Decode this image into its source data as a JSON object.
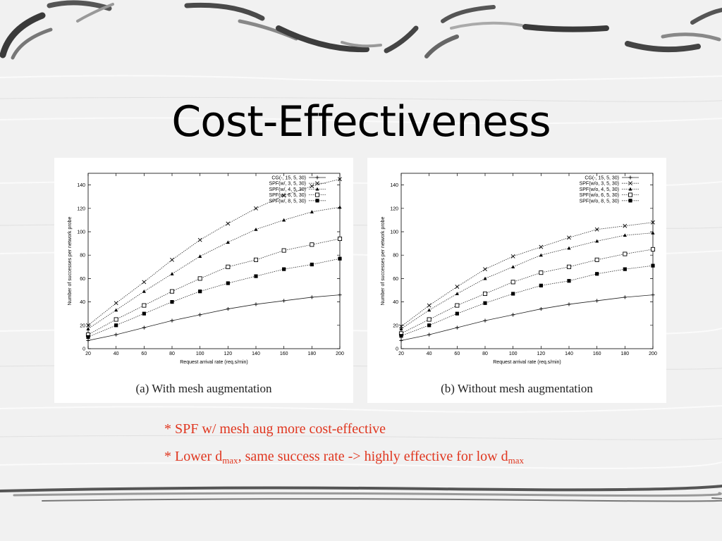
{
  "slide": {
    "title": "Cost-Effectiveness",
    "bullet1": "* SPF w/ mesh aug more cost-effective",
    "bullet2": {
      "prefix": "* Lower d",
      "sub1": "max",
      "middle": ", same success rate -> highly effective for low d",
      "sub2": "max"
    }
  },
  "colors": {
    "title": "#000000",
    "bullet": "#e0361f",
    "panel": "#ffffff"
  },
  "chart_data": [
    {
      "type": "line",
      "caption": "(a) With mesh augmentation",
      "xlabel": "Request arrival rate (req.s/min)",
      "ylabel": "Number of successes per network probe",
      "xlim": [
        20,
        200
      ],
      "ylim": [
        0,
        150
      ],
      "xticks": [
        20,
        40,
        60,
        80,
        100,
        120,
        140,
        160,
        180,
        200
      ],
      "yticks": [
        0,
        20,
        40,
        60,
        80,
        100,
        120,
        140
      ],
      "legend_position": "top-right",
      "grid": false,
      "x": [
        20,
        40,
        60,
        80,
        100,
        120,
        140,
        160,
        180,
        200
      ],
      "series": [
        {
          "name": "CG(-, 15, 5, 30)",
          "marker": "plus",
          "values": [
            7,
            12,
            18,
            24,
            29,
            34,
            38,
            41,
            44,
            46
          ]
        },
        {
          "name": "SPF(w/, 3, 5, 30)",
          "marker": "x",
          "values": [
            20,
            39,
            57,
            76,
            93,
            107,
            120,
            131,
            139,
            145
          ]
        },
        {
          "name": "SPF(w/, 4, 5, 30)",
          "marker": "triangle",
          "values": [
            17,
            33,
            49,
            64,
            79,
            91,
            102,
            110,
            117,
            121
          ]
        },
        {
          "name": "SPF(w/, 6, 5, 30)",
          "marker": "square-open",
          "values": [
            12,
            25,
            37,
            49,
            60,
            70,
            76,
            84,
            89,
            94
          ]
        },
        {
          "name": "SPF(w/, 8, 5, 30)",
          "marker": "square-filled",
          "values": [
            10,
            20,
            30,
            40,
            49,
            56,
            62,
            68,
            72,
            77
          ]
        }
      ]
    },
    {
      "type": "line",
      "caption": "(b) Without mesh augmentation",
      "xlabel": "Request arrival rate (req.s/min)",
      "ylabel": "Number of successes per network probe",
      "xlim": [
        20,
        200
      ],
      "ylim": [
        0,
        150
      ],
      "xticks": [
        20,
        40,
        60,
        80,
        100,
        120,
        140,
        160,
        180,
        200
      ],
      "yticks": [
        0,
        20,
        40,
        60,
        80,
        100,
        120,
        140
      ],
      "legend_position": "top-right",
      "grid": false,
      "x": [
        20,
        40,
        60,
        80,
        100,
        120,
        140,
        160,
        180,
        200
      ],
      "series": [
        {
          "name": "CG(-, 15, 5, 30)",
          "marker": "plus",
          "values": [
            7,
            12,
            18,
            24,
            29,
            34,
            38,
            41,
            44,
            46
          ]
        },
        {
          "name": "SPF(w/o, 3, 5, 30)",
          "marker": "x",
          "values": [
            19,
            37,
            53,
            68,
            79,
            87,
            95,
            102,
            105,
            108
          ]
        },
        {
          "name": "SPF(w/o, 4, 5, 30)",
          "marker": "triangle",
          "values": [
            17,
            33,
            47,
            60,
            70,
            80,
            86,
            92,
            97,
            99
          ]
        },
        {
          "name": "SPF(w/o, 6, 5, 30)",
          "marker": "square-open",
          "values": [
            13,
            25,
            37,
            47,
            57,
            65,
            70,
            76,
            81,
            85
          ]
        },
        {
          "name": "SPF(w/o, 8, 5, 30)",
          "marker": "square-filled",
          "values": [
            11,
            20,
            30,
            39,
            47,
            54,
            58,
            64,
            68,
            71
          ]
        }
      ]
    }
  ]
}
